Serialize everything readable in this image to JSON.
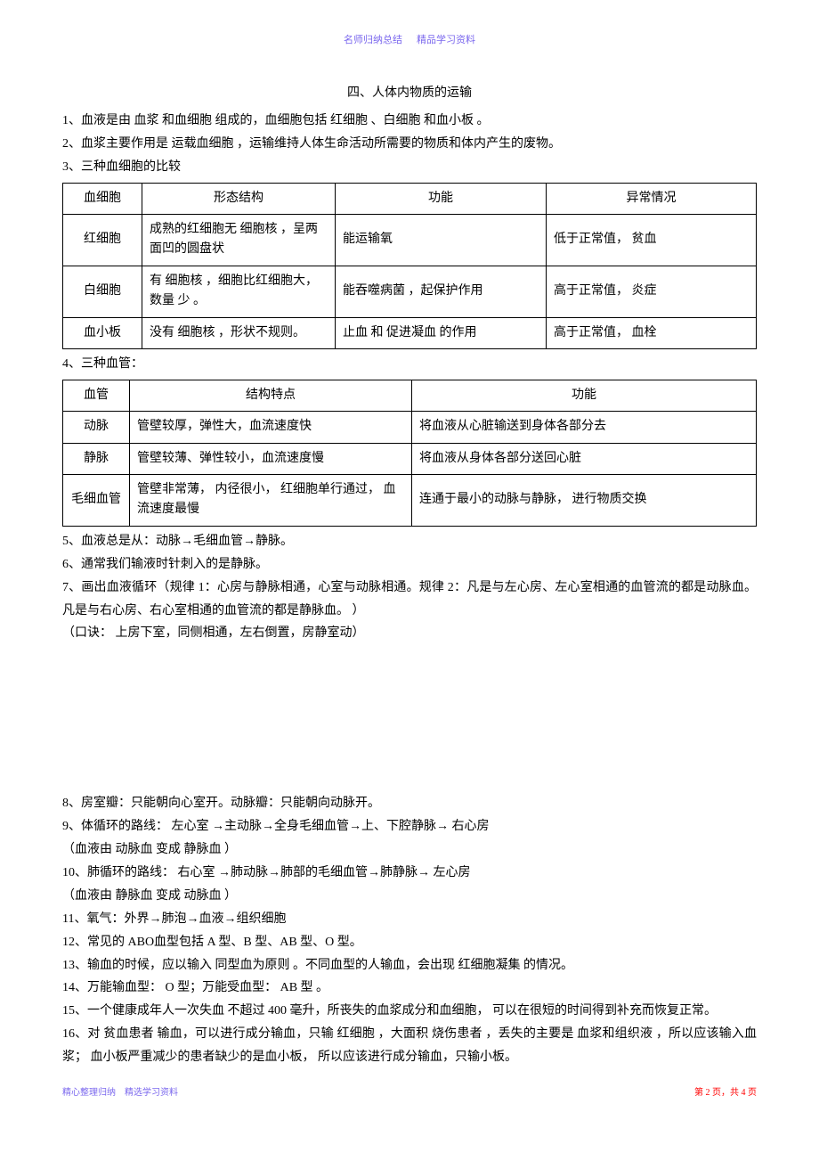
{
  "header": {
    "label1": "名师归纳总结",
    "label2": "精品学习资料"
  },
  "title": "四、人体内物质的运输",
  "p1": "1、血液是由  血浆 和血细胞 组成的，血细胞包括    红细胞 、白细胞 和血小板 。",
  "p2": "2、血浆主要作用是    运载血细胞  ，运输维持人体生命活动所需要的物质和体内产生的废物。",
  "p3": "3、三种血细胞的比较",
  "table1": {
    "headers": [
      "血细胞",
      "形态结构",
      "功能",
      "异常情况"
    ],
    "rows": [
      [
        "红细胞",
        "成熟的红细胞无   细胞核 ，呈两面凹的圆盘状",
        "能运输氧",
        "低于正常值，   贫血"
      ],
      [
        "白细胞",
        "有 细胞核 ，细胞比红细胞大，数量 少 。",
        "能吞噬病菌  ，起保护作用",
        "高于正常值，   炎症"
      ],
      [
        "血小板",
        "没有 细胞核 ，形状不规则。",
        "止血 和 促进凝血  的作用",
        "高于正常值，   血栓"
      ]
    ]
  },
  "p4": "4、三种血管：",
  "table2": {
    "headers": [
      "血管",
      "结构特点",
      "功能"
    ],
    "rows": [
      [
        "动脉",
        "管壁较厚，弹性大，血流速度快",
        "将血液从心脏输送到身体各部分去"
      ],
      [
        "静脉",
        "管壁较薄、弹性较小，血流速度慢",
        "将血液从身体各部分送回心脏"
      ],
      [
        "毛细血管",
        "管壁非常薄，  内径很小，  红细胞单行通过， 血流速度最慢",
        "连通于最小的动脉与静脉，     进行物质交换"
      ]
    ]
  },
  "p5": "5、血液总是从：动脉→毛细血管→静脉。",
  "p6": "6、通常我们输液时针刺入的是静脉。",
  "p7": "7、画出血液循环（规律   1：心房与静脉相通，心室与动脉相通。规律       2：凡是与左心房、左心室相通的血管流的都是动脉血。凡是与右心房、右心室相通的血管流的都是静脉血。             ）",
  "p7b": "（口诀：  上房下室，同侧相通，左右倒置，房静室动）",
  "p8": "8、房室瓣：只能朝向心室开。动脉瓣：只能朝向动脉开。",
  "p9": "9、体循环的路线：    左心室 →主动脉→全身毛细血管→上、下腔静脉→         右心房",
  "p9b": "（血液由  动脉血 变成 静脉血 ）",
  "p10": "10、肺循环的路线：    右心室 →肺动脉→肺部的毛细血管→肺静脉→       左心房",
  "p10b": "（血液由  静脉血 变成 动脉血 ）",
  "p11": "11、氧气：外界→肺泡→血液→组织细胞",
  "p12": "12、常见的  ABO血型包括  A 型、B 型、AB 型、O 型。",
  "p13": "13、输血的时候，应以输入     同型血为原则 。不同血型的人输血，会出现      红细胞凝集 的情况。",
  "p14": "14、万能输血型：   O 型；万能受血型：   AB 型 。",
  "p15": "15、一个健康成年人一次失血     不超过 400 毫升，所丧失的血浆成分和血细胞，     可以在很短的时间得到补充而恢复正常。",
  "p16": "16、对 贫血患者 输血，可以进行成分输血，只输     红细胞 ，大面积 烧伤患者 ，丢失的主要是  血浆和组织液 ，所以应该输入血浆；   血小板严重减少的患者缺少的是血小板，       所以应该进行成分输血，只输小板。",
  "footer": {
    "left1": "精心整理归纳",
    "left2": "精选学习资料",
    "right": "第 2 页，共 4 页"
  }
}
